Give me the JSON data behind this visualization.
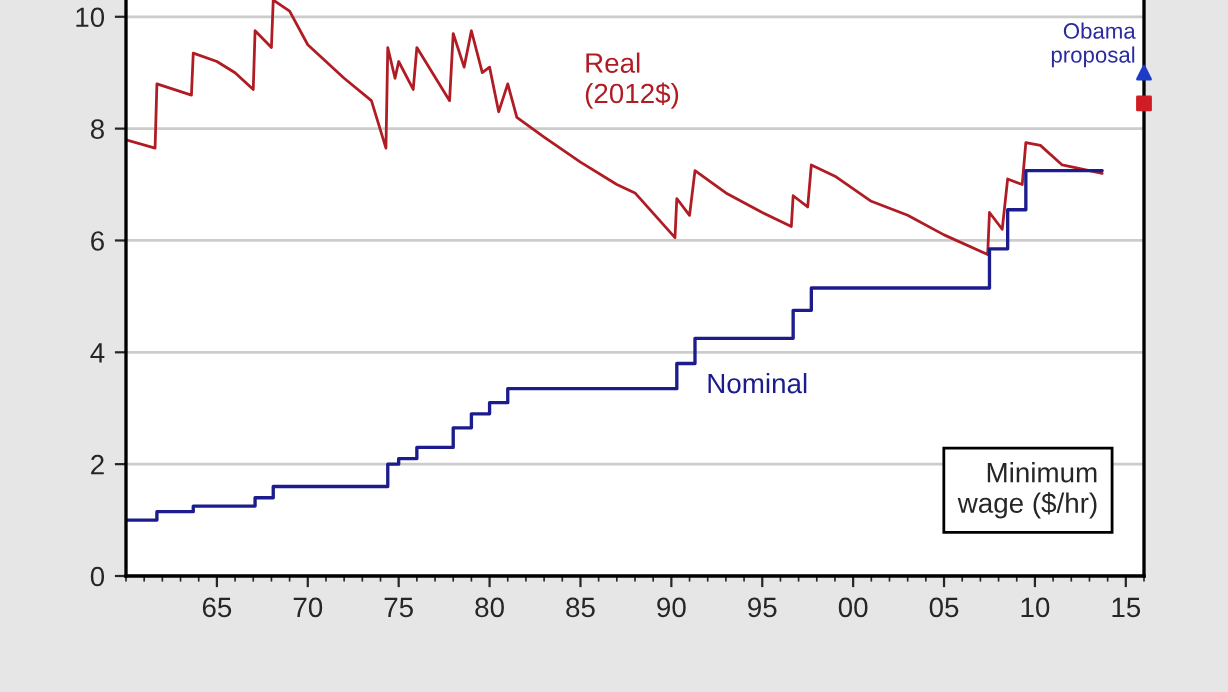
{
  "chart_data": {
    "type": "line",
    "xlim": [
      1960,
      2016
    ],
    "ylim": [
      0,
      10.3
    ],
    "xticks": [
      {
        "value": 1965,
        "label": "65"
      },
      {
        "value": 1970,
        "label": "70"
      },
      {
        "value": 1975,
        "label": "75"
      },
      {
        "value": 1980,
        "label": "80"
      },
      {
        "value": 1985,
        "label": "85"
      },
      {
        "value": 1990,
        "label": "90"
      },
      {
        "value": 1995,
        "label": "95"
      },
      {
        "value": 2000,
        "label": "00"
      },
      {
        "value": 2005,
        "label": "05"
      },
      {
        "value": 2010,
        "label": "10"
      },
      {
        "value": 2015,
        "label": "15"
      }
    ],
    "yticks": [
      0,
      2,
      4,
      6,
      8,
      10
    ],
    "grid": "y",
    "series": [
      {
        "name": "Real (2012$)",
        "color": "#b01c24",
        "x": [
          1960,
          1961.6,
          1961.7,
          1963.6,
          1963.7,
          1965,
          1966,
          1967,
          1967.1,
          1968,
          1968.1,
          1969,
          1970,
          1972,
          1973.5,
          1974.3,
          1974.4,
          1974.8,
          1975,
          1975.8,
          1976,
          1977.8,
          1978,
          1978.6,
          1979,
          1979.6,
          1980,
          1980.5,
          1981,
          1981.5,
          1983,
          1985,
          1987,
          1988,
          1990.2,
          1990.3,
          1991,
          1991.3,
          1993,
          1995,
          1996.6,
          1996.7,
          1997.5,
          1997.7,
          1999,
          2001,
          2003,
          2005,
          2007.4,
          2007.5,
          2008.2,
          2008.5,
          2009.3,
          2009.5,
          2010.3,
          2011.5,
          2013.7
        ],
        "values": [
          7.8,
          7.65,
          8.8,
          8.6,
          9.35,
          9.2,
          9.0,
          8.7,
          9.75,
          9.45,
          10.3,
          10.1,
          9.5,
          8.9,
          8.5,
          7.65,
          9.45,
          8.9,
          9.2,
          8.7,
          9.45,
          8.5,
          9.7,
          9.1,
          9.75,
          9.0,
          9.1,
          8.3,
          8.8,
          8.2,
          7.85,
          7.4,
          7.0,
          6.85,
          6.05,
          6.75,
          6.45,
          7.25,
          6.85,
          6.5,
          6.25,
          6.8,
          6.6,
          7.35,
          7.15,
          6.7,
          6.45,
          6.1,
          5.75,
          6.5,
          6.2,
          7.1,
          7.0,
          7.75,
          7.7,
          7.35,
          7.2
        ]
      },
      {
        "name": "Nominal",
        "type": "step",
        "color": "#1c1c8c",
        "x": [
          1960,
          1961.7,
          1963.7,
          1967.1,
          1968.1,
          1974.4,
          1975,
          1976,
          1978,
          1979,
          1980,
          1981,
          1990.3,
          1991.3,
          1996.7,
          1997.7,
          2007.5,
          2008.5,
          2009.5,
          2013.7
        ],
        "values": [
          1.0,
          1.15,
          1.25,
          1.4,
          1.6,
          2.0,
          2.1,
          2.3,
          2.65,
          2.9,
          3.1,
          3.35,
          3.8,
          4.25,
          4.75,
          5.15,
          5.85,
          6.55,
          7.25,
          7.25
        ]
      },
      {
        "type": "scatter",
        "marker": "triangle",
        "color": "#1c3cc8",
        "x": [
          2016
        ],
        "values": [
          9.0
        ]
      },
      {
        "type": "scatter",
        "marker": "square",
        "color": "#d01c24",
        "x": [
          2016
        ],
        "values": [
          8.45
        ]
      }
    ],
    "annotations": [
      {
        "text": "Obama proposal",
        "x": 2016,
        "y": 9.0
      },
      "Minimum wage ($/hr)"
    ]
  }
}
